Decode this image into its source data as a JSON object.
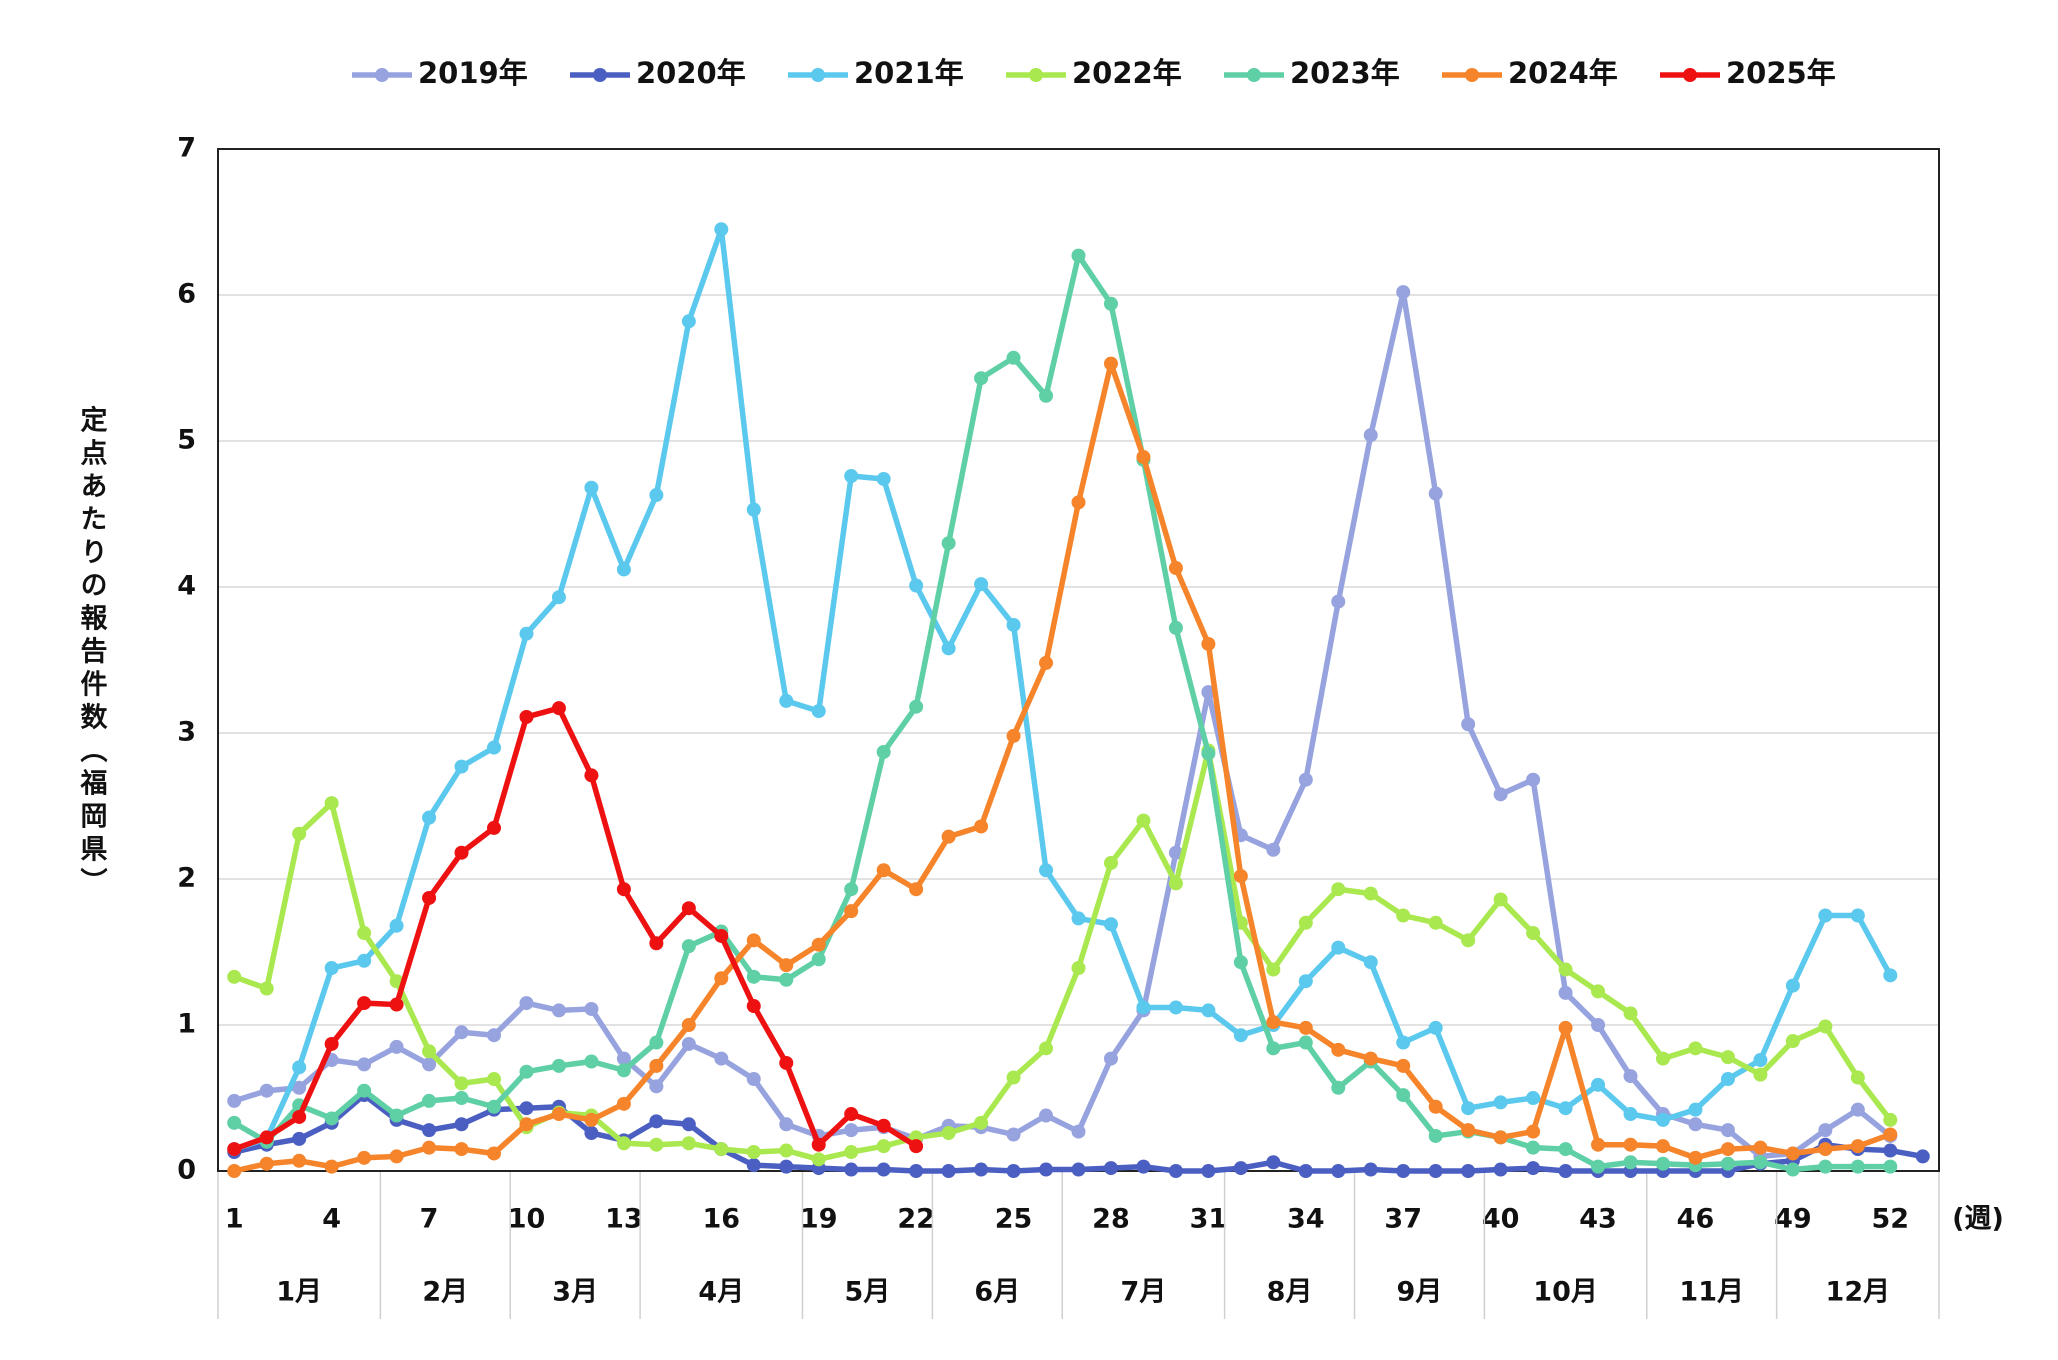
{
  "chart_data": {
    "type": "line",
    "x_label": "(週)",
    "y_label": "定点あたりの報告件数（福岡県）",
    "x": [
      1,
      2,
      3,
      4,
      5,
      6,
      7,
      8,
      9,
      10,
      11,
      12,
      13,
      14,
      15,
      16,
      17,
      18,
      19,
      20,
      21,
      22,
      23,
      24,
      25,
      26,
      27,
      28,
      29,
      30,
      31,
      32,
      33,
      34,
      35,
      36,
      37,
      38,
      39,
      40,
      41,
      42,
      43,
      44,
      45,
      46,
      47,
      48,
      49,
      50,
      51,
      52,
      53
    ],
    "xlim": [
      0.5,
      53.5
    ],
    "xticks": [
      1,
      4,
      7,
      10,
      13,
      16,
      19,
      22,
      25,
      28,
      31,
      34,
      37,
      40,
      43,
      46,
      49,
      52
    ],
    "ylim": [
      0,
      7
    ],
    "yticks": [
      0,
      1,
      2,
      3,
      4,
      5,
      6,
      7
    ],
    "grid": true,
    "legend": "top",
    "months": [
      "1月",
      "2月",
      "3月",
      "4月",
      "5月",
      "6月",
      "7月",
      "8月",
      "9月",
      "10月",
      "11月",
      "12月"
    ],
    "series": [
      {
        "name": "2019年",
        "color": "#97a3de",
        "values": [
          0.48,
          0.55,
          0.57,
          0.76,
          0.73,
          0.85,
          0.73,
          0.95,
          0.93,
          1.15,
          1.1,
          1.11,
          0.77,
          0.58,
          0.87,
          0.77,
          0.63,
          0.32,
          0.24,
          0.28,
          0.3,
          0.22,
          0.31,
          0.3,
          0.25,
          0.38,
          0.27,
          0.77,
          1.1,
          2.18,
          3.28,
          2.3,
          2.2,
          2.68,
          3.9,
          5.04,
          6.02,
          4.64,
          3.06,
          2.58,
          2.68,
          1.22,
          1.0,
          0.65,
          0.39,
          0.32,
          0.28,
          0.1,
          0.12,
          0.28,
          0.42,
          0.24,
          null
        ]
      },
      {
        "name": "2020年",
        "color": "#4a5fc1",
        "values": [
          0.13,
          0.18,
          0.22,
          0.33,
          0.52,
          0.35,
          0.28,
          0.32,
          0.42,
          0.43,
          0.44,
          0.26,
          0.21,
          0.34,
          0.32,
          0.15,
          0.04,
          0.03,
          0.02,
          0.01,
          0.01,
          0,
          0,
          0.01,
          0,
          0.01,
          0.01,
          0.02,
          0.03,
          0,
          0,
          0.02,
          0.06,
          0,
          0,
          0.01,
          0,
          0,
          0,
          0.01,
          0.02,
          0,
          0,
          0,
          0,
          0,
          0,
          0.05,
          0.07,
          0.18,
          0.15,
          0.14,
          0.1
        ]
      },
      {
        "name": "2021年",
        "color": "#5bc8ee",
        "values": [
          0.15,
          0.22,
          0.71,
          1.39,
          1.44,
          1.68,
          2.42,
          2.77,
          2.9,
          3.68,
          3.93,
          4.68,
          4.12,
          4.63,
          5.82,
          6.45,
          4.53,
          3.22,
          3.15,
          4.76,
          4.74,
          4.01,
          3.58,
          4.02,
          3.74,
          2.06,
          1.73,
          1.69,
          1.12,
          1.12,
          1.1,
          0.93,
          1.0,
          1.3,
          1.53,
          1.43,
          0.88,
          0.98,
          0.43,
          0.47,
          0.5,
          0.43,
          0.59,
          0.39,
          0.35,
          0.42,
          0.63,
          0.76,
          1.27,
          1.75,
          1.75,
          1.34,
          null
        ]
      },
      {
        "name": "2022年",
        "color": "#a9e84f",
        "values": [
          1.33,
          1.25,
          2.31,
          2.52,
          1.63,
          1.3,
          0.82,
          0.6,
          0.63,
          0.3,
          0.4,
          0.38,
          0.19,
          0.18,
          0.19,
          0.15,
          0.13,
          0.14,
          0.08,
          0.13,
          0.17,
          0.23,
          0.26,
          0.33,
          0.64,
          0.84,
          1.39,
          2.11,
          2.4,
          1.97,
          2.88,
          1.7,
          1.38,
          1.7,
          1.93,
          1.9,
          1.75,
          1.7,
          1.58,
          1.86,
          1.63,
          1.38,
          1.23,
          1.08,
          0.77,
          0.84,
          0.78,
          0.66,
          0.89,
          0.99,
          0.64,
          0.35,
          null
        ]
      },
      {
        "name": "2023年",
        "color": "#5fcfa5",
        "values": [
          0.33,
          0.2,
          0.45,
          0.36,
          0.55,
          0.38,
          0.48,
          0.5,
          0.44,
          0.68,
          0.72,
          0.75,
          0.69,
          0.88,
          1.54,
          1.64,
          1.33,
          1.31,
          1.45,
          1.93,
          2.87,
          3.18,
          4.3,
          5.43,
          5.57,
          5.31,
          6.27,
          5.94,
          4.87,
          3.72,
          2.86,
          1.43,
          0.84,
          0.88,
          0.57,
          0.75,
          0.52,
          0.24,
          0.27,
          0.23,
          0.16,
          0.15,
          0.03,
          0.06,
          0.05,
          0.04,
          0.05,
          0.06,
          0.01,
          0.03,
          0.03,
          0.03,
          null
        ]
      },
      {
        "name": "2024年",
        "color": "#f5842a",
        "values": [
          0,
          0.05,
          0.07,
          0.03,
          0.09,
          0.1,
          0.16,
          0.15,
          0.12,
          0.32,
          0.39,
          0.35,
          0.46,
          0.72,
          1.0,
          1.32,
          1.58,
          1.41,
          1.55,
          1.78,
          2.06,
          1.93,
          2.29,
          2.36,
          2.98,
          3.48,
          4.58,
          5.53,
          4.89,
          4.13,
          3.61,
          2.02,
          1.02,
          0.98,
          0.83,
          0.77,
          0.72,
          0.44,
          0.28,
          0.23,
          0.27,
          0.98,
          0.18,
          0.18,
          0.17,
          0.09,
          0.15,
          0.16,
          0.12,
          0.15,
          0.17,
          0.25,
          null
        ]
      },
      {
        "name": "2025年",
        "color": "#ee1111",
        "values": [
          0.15,
          0.23,
          0.37,
          0.87,
          1.15,
          1.14,
          1.87,
          2.18,
          2.35,
          3.11,
          3.17,
          2.71,
          1.93,
          1.56,
          1.8,
          1.61,
          1.13,
          0.74,
          0.18,
          0.39,
          0.31,
          0.17,
          null,
          null,
          null,
          null,
          null,
          null,
          null,
          null,
          null,
          null,
          null,
          null,
          null,
          null,
          null,
          null,
          null,
          null,
          null,
          null,
          null,
          null,
          null,
          null,
          null,
          null,
          null,
          null,
          null,
          null,
          null
        ]
      }
    ]
  }
}
